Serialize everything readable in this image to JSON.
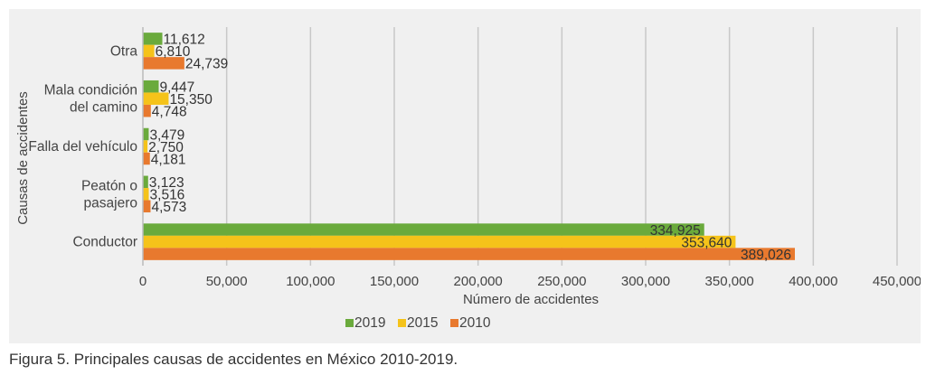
{
  "chart_data": {
    "type": "bar",
    "orientation": "horizontal",
    "categories": [
      "Conductor",
      "Peatón o pasajero",
      "Falla del vehículo",
      "Mala condición del camino",
      "Otra"
    ],
    "category_label_lines": [
      [
        "Conductor"
      ],
      [
        "Peatón o",
        "pasajero"
      ],
      [
        "Falla del vehículo"
      ],
      [
        "Mala condición",
        "del camino"
      ],
      [
        "Otra"
      ]
    ],
    "series": [
      {
        "name": "2019",
        "color": "#6aaa3c",
        "values": [
          334925,
          3123,
          3479,
          9447,
          11612
        ],
        "labels": [
          "334,925",
          "3,123",
          "3,479",
          "9,447",
          "11,612"
        ]
      },
      {
        "name": "2015",
        "color": "#f5c31a",
        "values": [
          353640,
          3516,
          2750,
          15350,
          6810
        ],
        "labels": [
          "353,640",
          "3,516",
          "2,750",
          "15,350",
          "6,810"
        ]
      },
      {
        "name": "2010",
        "color": "#e8792e",
        "values": [
          389026,
          4573,
          4181,
          4748,
          24739
        ],
        "labels": [
          "389,026",
          "4,573",
          "4,181",
          "4,748",
          "24,739"
        ]
      }
    ],
    "xlabel": "Número de accidentes",
    "ylabel": "Causas de accidentes",
    "xlim": [
      0,
      450000
    ],
    "x_ticks": [
      0,
      50000,
      100000,
      150000,
      200000,
      250000,
      300000,
      350000,
      400000,
      450000
    ],
    "x_tick_labels": [
      "0",
      "50,000",
      "100,000",
      "150,000",
      "200,000",
      "250,000",
      "300,000",
      "350,000",
      "400,000",
      "450,000"
    ],
    "grid": true,
    "legend_position": "bottom"
  },
  "caption": "Figura 5. Principales causas de accidentes en México 2010-2019."
}
